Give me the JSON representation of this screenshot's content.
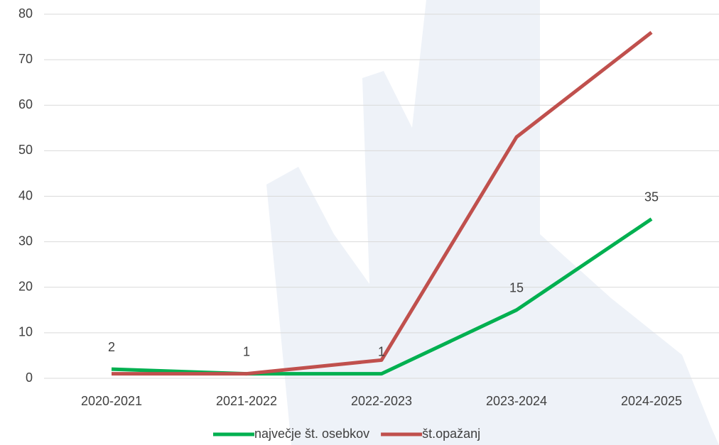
{
  "chart_data": {
    "type": "line",
    "categories": [
      "2020-2021",
      "2021-2022",
      "2022-2023",
      "2023-2024",
      "2024-2025"
    ],
    "series": [
      {
        "name": "največje št. osebkov",
        "color": "#00b050",
        "values": [
          2,
          1,
          1,
          15,
          35
        ],
        "data_labels": true
      },
      {
        "name": "št.opažanj",
        "color": "#c0504d",
        "values": [
          1,
          1,
          4,
          53,
          76
        ],
        "data_labels": false
      }
    ],
    "ylim": [
      0,
      80
    ],
    "yticks": [
      0,
      10,
      20,
      30,
      40,
      50,
      60,
      70,
      80
    ],
    "grid": true,
    "legend": "bottom"
  }
}
